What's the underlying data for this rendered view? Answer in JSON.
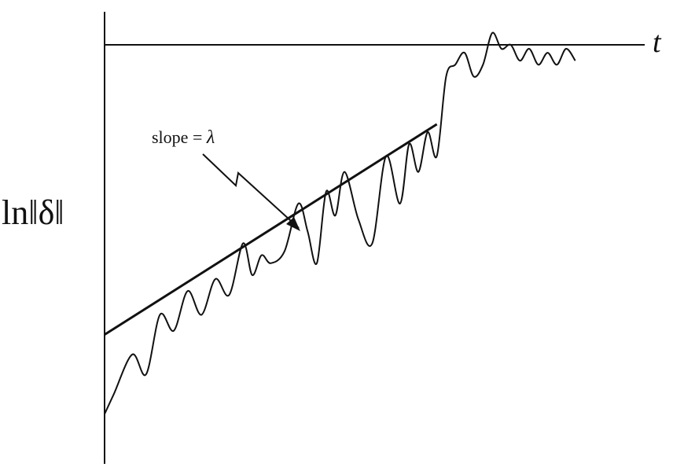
{
  "chart_data": {
    "type": "line",
    "title": "",
    "xlabel": "t",
    "ylabel": "ln‖δ‖",
    "grid": false,
    "legend": "none",
    "x_range": [
      0,
      1
    ],
    "y_range": [
      -1,
      0
    ],
    "series": [
      {
        "values_x": [
          0.0,
          0.02,
          0.06,
          0.09,
          0.12,
          0.15,
          0.18,
          0.21,
          0.24,
          0.27,
          0.3,
          0.32,
          0.34,
          0.36,
          0.39,
          0.42,
          0.44,
          0.46,
          0.48,
          0.5,
          0.52,
          0.55,
          0.58,
          0.61,
          0.64,
          0.66,
          0.68,
          0.7,
          0.72,
          0.74,
          0.76,
          0.78,
          0.8,
          0.82,
          0.84,
          0.86,
          0.88,
          0.9,
          0.92,
          0.94,
          0.96,
          0.98,
          1.0,
          1.02
        ],
        "values_y": [
          -0.93,
          -0.88,
          -0.78,
          -0.83,
          -0.68,
          -0.72,
          -0.62,
          -0.68,
          -0.59,
          -0.63,
          -0.5,
          -0.58,
          -0.53,
          -0.55,
          -0.52,
          -0.4,
          -0.47,
          -0.55,
          -0.37,
          -0.43,
          -0.32,
          -0.44,
          -0.5,
          -0.28,
          -0.4,
          -0.25,
          -0.32,
          -0.22,
          -0.28,
          -0.08,
          -0.05,
          -0.02,
          -0.08,
          -0.05,
          0.03,
          -0.01,
          0.0,
          -0.04,
          -0.01,
          -0.05,
          -0.02,
          -0.05,
          -0.01,
          -0.04
        ]
      },
      {
        "values_x": [
          0.0,
          0.72
        ],
        "values_y": [
          -0.73,
          -0.2
        ]
      }
    ],
    "annotations": [
      {
        "text_prefix": "slope = ",
        "symbol": "λ"
      }
    ]
  }
}
